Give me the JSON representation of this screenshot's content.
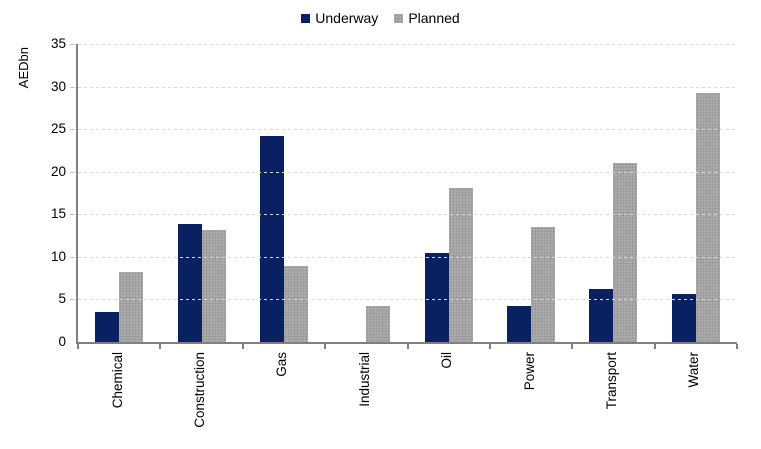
{
  "chart_data": {
    "type": "bar",
    "title": "",
    "xlabel": "",
    "ylabel": "AEDbn",
    "categories": [
      "Chemical",
      "Construction",
      "Gas",
      "Industrial",
      "Oil",
      "Power",
      "Transport",
      "Water"
    ],
    "series": [
      {
        "name": "Underway",
        "color": "#0a2161",
        "values": [
          3.5,
          13.9,
          24.2,
          0,
          10.5,
          4.2,
          6.2,
          5.6
        ]
      },
      {
        "name": "Planned",
        "color": "#ababab",
        "values": [
          8.2,
          13.2,
          8.9,
          4.2,
          18.1,
          13.5,
          21.0,
          29.3
        ]
      }
    ],
    "ylim": [
      0,
      35
    ],
    "yticks": [
      0,
      5,
      10,
      15,
      20,
      25,
      30,
      35
    ],
    "grid": true,
    "gridline_color": "#d9d9d9",
    "axis_color": "#808080",
    "legend_position": "top-center"
  }
}
